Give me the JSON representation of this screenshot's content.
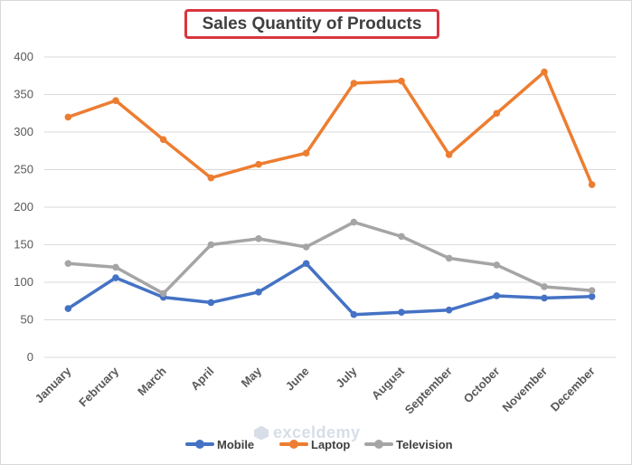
{
  "chart_data": {
    "type": "line",
    "title": "Sales Quantity of Products",
    "xlabel": "",
    "ylabel": "",
    "ylim": [
      0,
      400
    ],
    "yticks": [
      0,
      50,
      100,
      150,
      200,
      250,
      300,
      350,
      400
    ],
    "grid": true,
    "legend_position": "bottom",
    "categories": [
      "January",
      "February",
      "March",
      "April",
      "May",
      "June",
      "July",
      "August",
      "September",
      "October",
      "November",
      "December"
    ],
    "series": [
      {
        "name": "Mobile",
        "color": "#4472c4",
        "values": [
          65,
          106,
          80,
          73,
          87,
          125,
          57,
          60,
          63,
          82,
          79,
          81
        ]
      },
      {
        "name": "Laptop",
        "color": "#ed7d31",
        "values": [
          320,
          342,
          290,
          239,
          257,
          272,
          365,
          368,
          270,
          325,
          380,
          230
        ]
      },
      {
        "name": "Television",
        "color": "#a5a5a5",
        "values": [
          125,
          120,
          85,
          150,
          158,
          147,
          180,
          161,
          132,
          123,
          94,
          89
        ]
      }
    ]
  },
  "watermark": {
    "text": "exceldemy"
  }
}
